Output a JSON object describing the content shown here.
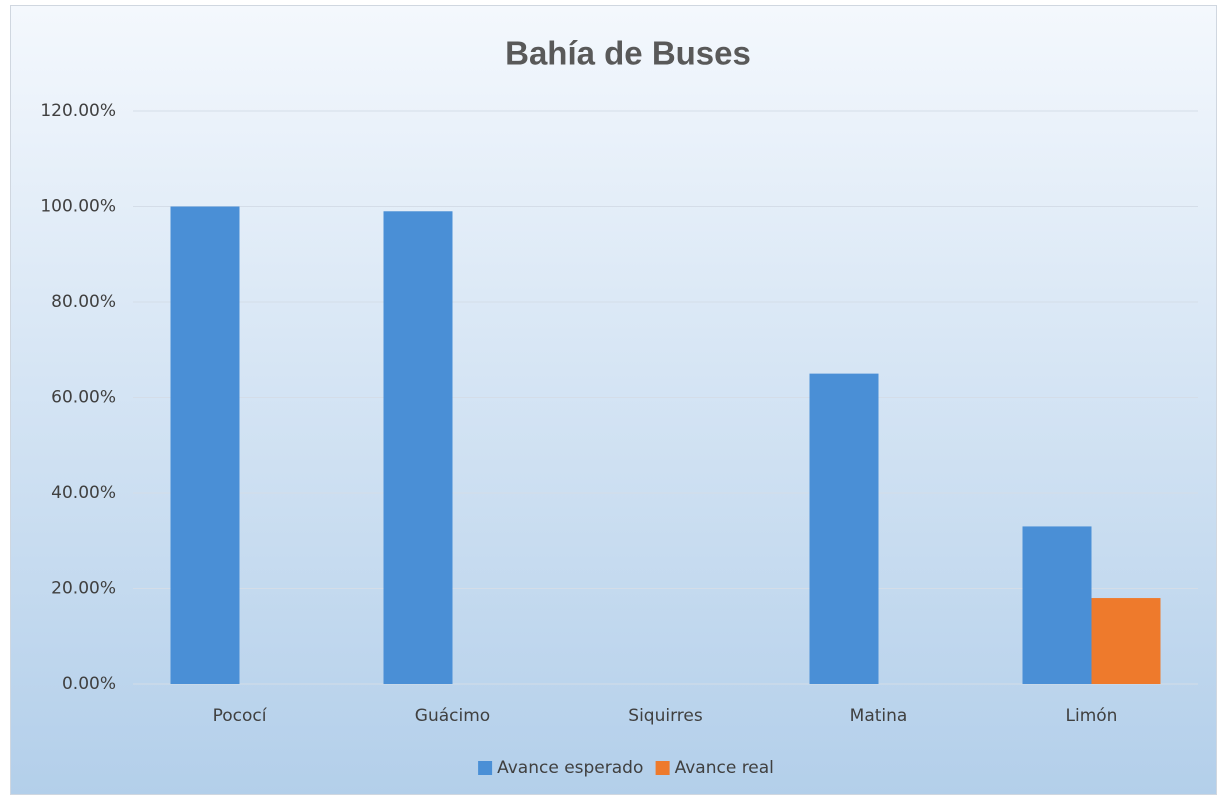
{
  "chart_data": {
    "type": "bar",
    "title": "Bahía de Buses",
    "categories": [
      "Pococí",
      "Guácimo",
      "Siquirres",
      "Matina",
      "Limón"
    ],
    "series": [
      {
        "name": "Avance esperado",
        "color": "#4a8fd6",
        "values": [
          100,
          99,
          0,
          65,
          33
        ]
      },
      {
        "name": "Avance real",
        "color": "#ee7a2c",
        "values": [
          0,
          0,
          0,
          0,
          18
        ]
      }
    ],
    "ylim": [
      0,
      120
    ],
    "yticks": [
      {
        "value": 0,
        "label": "0.00%"
      },
      {
        "value": 20,
        "label": "20.00%"
      },
      {
        "value": 40,
        "label": "40.00%"
      },
      {
        "value": 60,
        "label": "60.00%"
      },
      {
        "value": 80,
        "label": "80.00%"
      },
      {
        "value": 100,
        "label": "100.00%"
      },
      {
        "value": 120,
        "label": "120.00%"
      }
    ],
    "grid": true,
    "legend": "bottom"
  }
}
